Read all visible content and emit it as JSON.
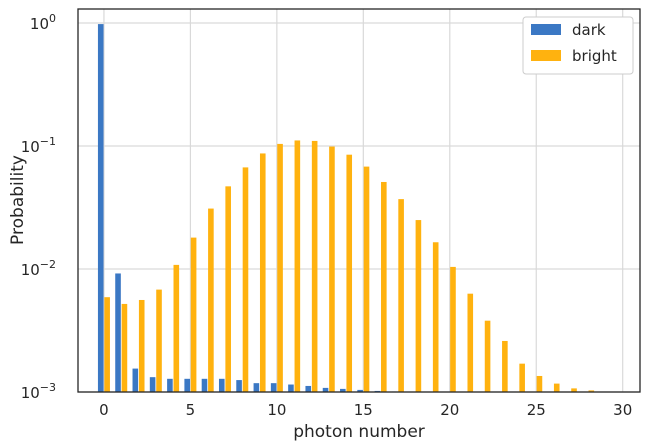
{
  "chart_data": {
    "type": "bar",
    "xlabel": "photon number",
    "ylabel": "Probability",
    "yscale": "log",
    "ylim": [
      0.001,
      1.3
    ],
    "xlim": [
      -1.5,
      31
    ],
    "grid": true,
    "legend_position": "top-right",
    "x_ticks": [
      0,
      5,
      10,
      15,
      20,
      25,
      30
    ],
    "x_tick_labels": [
      "0",
      "5",
      "10",
      "15",
      "20",
      "25",
      "30"
    ],
    "y_ticks": [
      {
        "value": 1,
        "base": "10",
        "exp": "0"
      },
      {
        "value": 0.1,
        "base": "10",
        "exp": "−1"
      },
      {
        "value": 0.01,
        "base": "10",
        "exp": "−2"
      },
      {
        "value": 0.001,
        "base": "10",
        "exp": "−3"
      }
    ],
    "x": [
      0,
      1,
      2,
      3,
      4,
      5,
      6,
      7,
      8,
      9,
      10,
      11,
      12,
      13,
      14,
      15,
      16,
      17,
      18,
      19,
      20,
      21,
      22,
      23,
      24,
      25,
      26,
      27,
      28
    ],
    "series": [
      {
        "name": "dark",
        "color": "#3b78c4",
        "values": [
          0.98,
          0.0092,
          0.00155,
          0.00132,
          0.00128,
          0.00128,
          0.00128,
          0.00128,
          0.00125,
          0.00118,
          0.00118,
          0.00115,
          0.00112,
          0.00108,
          0.00106,
          0.00104,
          0.00102,
          0.00101,
          0.001,
          0.001,
          0.001,
          0.001,
          0.001,
          0.001,
          0.001,
          0.001,
          0.001,
          0.001,
          0.001
        ]
      },
      {
        "name": "bright",
        "color": "#ffb20f",
        "values": [
          0.0059,
          0.0052,
          0.0056,
          0.0068,
          0.0108,
          0.018,
          0.031,
          0.047,
          0.067,
          0.087,
          0.104,
          0.111,
          0.11,
          0.099,
          0.085,
          0.068,
          0.051,
          0.037,
          0.025,
          0.0165,
          0.0104,
          0.0063,
          0.0038,
          0.0026,
          0.0017,
          0.00135,
          0.00117,
          0.00107,
          0.00103
        ]
      }
    ]
  }
}
